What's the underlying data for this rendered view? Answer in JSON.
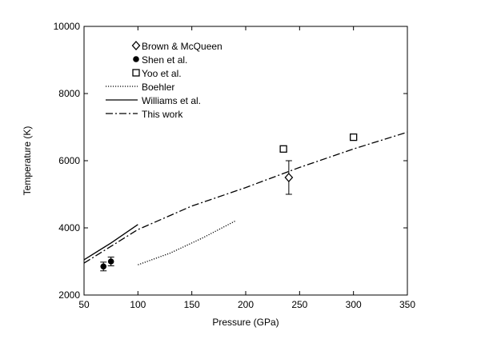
{
  "chart_data": {
    "type": "scatter",
    "xlabel": "Pressure (GPa)",
    "ylabel": "Temperature (K)",
    "xlim": [
      50,
      350
    ],
    "ylim": [
      2000,
      10000
    ],
    "x_ticks": [
      50,
      100,
      150,
      200,
      250,
      300,
      350
    ],
    "y_ticks": [
      2000,
      4000,
      6000,
      8000,
      10000
    ],
    "legend_position": "top-left",
    "points": [
      {
        "name": "Brown & McQueen",
        "marker": "diamond-open",
        "data": [
          {
            "x": 240,
            "y": 5500,
            "yerr": 500
          }
        ]
      },
      {
        "name": "Shen et al.",
        "marker": "circle-filled",
        "data": [
          {
            "x": 68,
            "y": 2850,
            "yerr": 130
          },
          {
            "x": 75,
            "y": 3000,
            "yerr": 130
          }
        ]
      },
      {
        "name": "Yoo et al.",
        "marker": "square-open",
        "data": [
          {
            "x": 235,
            "y": 6350
          },
          {
            "x": 300,
            "y": 6700
          }
        ]
      }
    ],
    "lines": [
      {
        "name": "Boehler",
        "style": "dotted",
        "data": [
          [
            100,
            2900
          ],
          [
            130,
            3250
          ],
          [
            160,
            3700
          ],
          [
            190,
            4200
          ]
        ]
      },
      {
        "name": "Williams et al.",
        "style": "solid",
        "data": [
          [
            50,
            3050
          ],
          [
            75,
            3550
          ],
          [
            100,
            4100
          ]
        ]
      },
      {
        "name": "This work",
        "style": "dashdot",
        "data": [
          [
            50,
            2950
          ],
          [
            75,
            3450
          ],
          [
            100,
            3950
          ],
          [
            150,
            4650
          ],
          [
            200,
            5200
          ],
          [
            250,
            5800
          ],
          [
            300,
            6350
          ],
          [
            350,
            6850
          ]
        ]
      }
    ]
  }
}
